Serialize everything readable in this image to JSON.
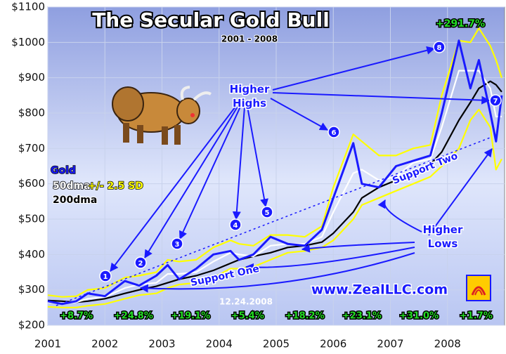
{
  "chart_data": {
    "type": "line",
    "title": "The Secular Gold Bull",
    "subtitle": "2001 - 2008",
    "x": [
      2001.0,
      2001.25,
      2001.5,
      2001.7,
      2002.0,
      2002.35,
      2002.6,
      2002.9,
      2003.1,
      2003.3,
      2003.6,
      2003.9,
      2004.2,
      2004.35,
      2004.6,
      2004.9,
      2005.2,
      2005.5,
      2005.8,
      2006.0,
      2006.35,
      2006.5,
      2006.8,
      2007.1,
      2007.4,
      2007.7,
      2007.9,
      2008.2,
      2008.4,
      2008.55,
      2008.75,
      2008.85,
      2008.95
    ],
    "series": [
      {
        "name": "Gold",
        "color": "#1a1aff",
        "values": [
          268,
          260,
          268,
          290,
          282,
          325,
          312,
          340,
          370,
          330,
          360,
          400,
          410,
          385,
          400,
          450,
          430,
          425,
          470,
          560,
          715,
          600,
          590,
          650,
          665,
          680,
          800,
          1005,
          870,
          950,
          800,
          720,
          850
        ]
      },
      {
        "name": "50dma",
        "color": "#ffffff",
        "values": [
          265,
          262,
          265,
          275,
          280,
          305,
          315,
          320,
          345,
          345,
          350,
          380,
          405,
          400,
          395,
          425,
          430,
          430,
          450,
          520,
          630,
          640,
          610,
          620,
          660,
          670,
          760,
          920,
          920,
          920,
          870,
          790,
          790
        ]
      },
      {
        "name": "200dma",
        "color": "#000000",
        "values": [
          270,
          268,
          265,
          268,
          275,
          290,
          300,
          310,
          320,
          330,
          340,
          355,
          375,
          385,
          395,
          405,
          420,
          425,
          435,
          460,
          520,
          560,
          590,
          610,
          630,
          655,
          690,
          780,
          830,
          870,
          890,
          880,
          860
        ]
      },
      {
        "name": "+/- 2.5 SD",
        "color": "#ffff00",
        "upper": [
          285,
          280,
          282,
          300,
          305,
          335,
          340,
          350,
          385,
          380,
          385,
          420,
          440,
          430,
          425,
          455,
          455,
          450,
          480,
          590,
          740,
          720,
          680,
          680,
          700,
          710,
          850,
          1005,
          1000,
          1040,
          990,
          950,
          900
        ],
        "lower": [
          252,
          250,
          250,
          255,
          260,
          275,
          285,
          290,
          305,
          315,
          320,
          335,
          360,
          360,
          365,
          385,
          405,
          410,
          420,
          440,
          500,
          540,
          560,
          580,
          600,
          620,
          650,
          700,
          780,
          810,
          760,
          640,
          670
        ]
      }
    ],
    "xlim": [
      2001,
      2009
    ],
    "xticks": [
      2001,
      2002,
      2003,
      2004,
      2005,
      2006,
      2007,
      2008
    ],
    "ylim": [
      200,
      1100
    ],
    "yticks": [
      {
        "value": 200,
        "label": "$200"
      },
      {
        "value": 300,
        "label": "$300"
      },
      {
        "value": 400,
        "label": "$400"
      },
      {
        "value": 500,
        "label": "$500"
      },
      {
        "value": 600,
        "label": "$600"
      },
      {
        "value": 700,
        "label": "$700"
      },
      {
        "value": 800,
        "label": "$800"
      },
      {
        "value": 900,
        "label": "$900"
      },
      {
        "value": 1000,
        "label": "$1000"
      },
      {
        "value": 1100,
        "label": "$1100"
      }
    ],
    "grid": true,
    "annotations": {
      "higher_highs": "Higher Highs",
      "higher_lows": "Higher Lows",
      "support_one": "Support One",
      "support_two": "Support Two",
      "total_gain": "+291.7%",
      "date": "12.24.2008",
      "website": "www.ZealLLC.com",
      "high_markers": [
        "1",
        "2",
        "3",
        "4",
        "5",
        "6",
        "7",
        "8"
      ],
      "year_returns": [
        "+8.7%",
        "+24.8%",
        "+19.1%",
        "+5.4%",
        "+18.2%",
        "+23.1%",
        "+31.0%",
        "+1.7%"
      ]
    }
  }
}
